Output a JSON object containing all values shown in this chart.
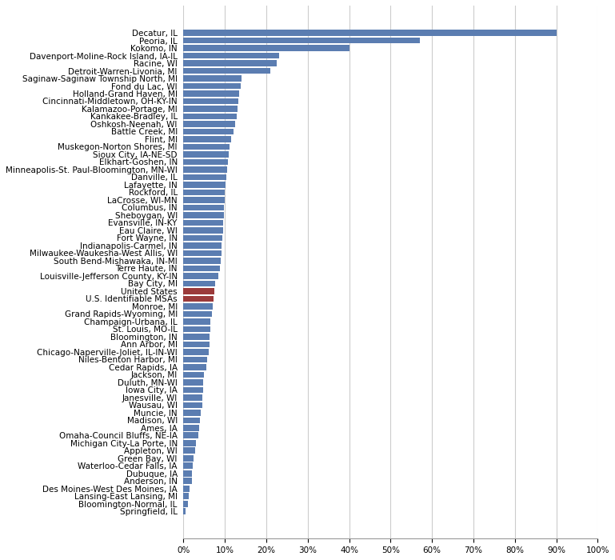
{
  "categories": [
    "Springfield, IL",
    "Bloomington-Normal, IL",
    "Lansing-East Lansing, MI",
    "Des Moines-West Des Moines, IA",
    "Anderson, IN",
    "Dubuque, IA",
    "Waterloo-Cedar Falls, IA",
    "Green Bay, WI",
    "Appleton, WI",
    "Michigan City-La Porte, IN",
    "Omaha-Council Bluffs, NE-IA",
    "Ames, IA",
    "Madison, WI",
    "Muncie, IN",
    "Wausau, WI",
    "Janesville, WI",
    "Iowa City, IA",
    "Duluth, MN-WI",
    "Jackson, MI",
    "Cedar Rapids, IA",
    "Niles-Benton Harbor, MI",
    "Chicago-Naperville-Joliet, IL-IN-WI",
    "Ann Arbor, MI",
    "Bloomington, IN",
    "St. Louis, MO-IL",
    "Champaign-Urbana, IL",
    "Grand Rapids-Wyoming, MI",
    "Monroe, MI",
    "U.S. Identifiable MSAs",
    "United States",
    "Bay City, MI",
    "Louisville-Jefferson County, KY-IN",
    "Terre Haute, IN",
    "South Bend-Mishawaka, IN-MI",
    "Milwaukee-Waukesha-West Allis, WI",
    "Indianapolis-Carmel, IN",
    "Fort Wayne, IN",
    "Eau Claire, WI",
    "Evansville, IN-KY",
    "Sheboygan, WI",
    "Columbus, IN",
    "LaCrosse, WI-MN",
    "Rockford, IL",
    "Lafayette, IN",
    "Danville, IL",
    "Minneapolis-St. Paul-Bloomington, MN-WI",
    "Elkhart-Goshen, IN",
    "Sioux City, IA-NE-SD",
    "Muskegon-Norton Shores, MI",
    "Flint, MI",
    "Battle Creek, MI",
    "Oshkosh-Neenah, WI",
    "Kankakee-Bradley, IL",
    "Kalamazoo-Portage, MI",
    "Cincinnati-Middletown, OH-KY-IN",
    "Holland-Grand Haven, MI",
    "Fond du Lac, WI",
    "Saginaw-Saginaw Township North, MI",
    "Detroit-Warren-Livonia, MI",
    "Racine, WI",
    "Davenport-Moline-Rock Island, IA-IL",
    "Kokomo, IN",
    "Peoria, IL",
    "Decatur, IL"
  ],
  "values": [
    0.5,
    1.0,
    1.2,
    1.5,
    2.0,
    2.1,
    2.2,
    2.5,
    2.8,
    3.0,
    3.5,
    3.8,
    4.0,
    4.2,
    4.5,
    4.6,
    4.7,
    4.8,
    5.0,
    5.5,
    5.8,
    6.0,
    6.2,
    6.3,
    6.4,
    6.5,
    6.8,
    7.0,
    7.2,
    7.4,
    7.6,
    8.5,
    8.8,
    9.0,
    9.1,
    9.2,
    9.3,
    9.5,
    9.6,
    9.7,
    9.8,
    9.9,
    10.0,
    10.2,
    10.3,
    10.5,
    10.7,
    11.0,
    11.2,
    11.5,
    12.0,
    12.5,
    12.8,
    13.0,
    13.2,
    13.5,
    13.8,
    14.0,
    21.0,
    22.5,
    23.0,
    40.0,
    57.0,
    90.0
  ],
  "bar_colors_special": {
    "U.S. Identifiable MSAs": "#9b3a3a",
    "United States": "#9b3a3a"
  },
  "default_bar_color": "#5b7db1",
  "xlim": [
    0,
    100
  ],
  "xtick_values": [
    0,
    10,
    20,
    30,
    40,
    50,
    60,
    70,
    80,
    90,
    100
  ],
  "xtick_labels": [
    "0%",
    "10%",
    "20%",
    "30%",
    "40%",
    "50%",
    "60%",
    "70%",
    "80%",
    "90%",
    "100%"
  ],
  "background_color": "#ffffff",
  "bar_height": 0.8,
  "fontsize": 7.5
}
